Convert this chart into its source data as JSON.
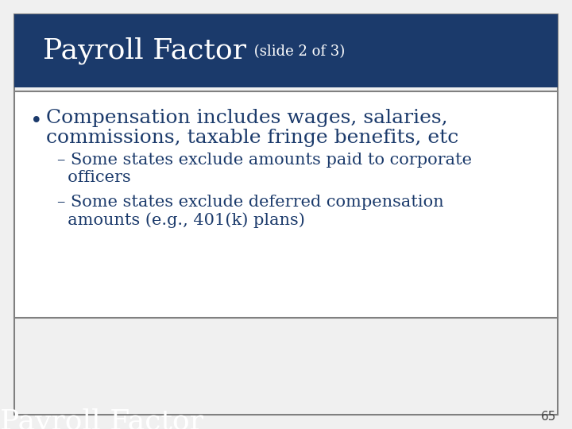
{
  "title_main": "Payroll Factor",
  "title_sub": " (slide 2 of 3)",
  "title_bg_color": "#1b3a6b",
  "title_text_color": "#ffffff",
  "slide_bg_color": "#f0f0f0",
  "outer_border_color": "#808080",
  "content_border_color": "#808080",
  "content_bg_color": "#ffffff",
  "bullet_text_line1": "Compensation includes wages, salaries,",
  "bullet_text_line2": "commissions, taxable fringe benefits, etc",
  "text_color": "#1b3a6b",
  "sub_bullet_1_line1": "– Some states exclude amounts paid to corporate",
  "sub_bullet_1_line2": "  officers",
  "sub_bullet_2_line1": "– Some states exclude deferred compensation",
  "sub_bullet_2_line2": "  amounts (e.g., 401(k) plans)",
  "page_number": "65",
  "title_fontsize": 26,
  "title_sub_fontsize": 13,
  "bullet_fontsize": 18,
  "sub_bullet_fontsize": 15
}
